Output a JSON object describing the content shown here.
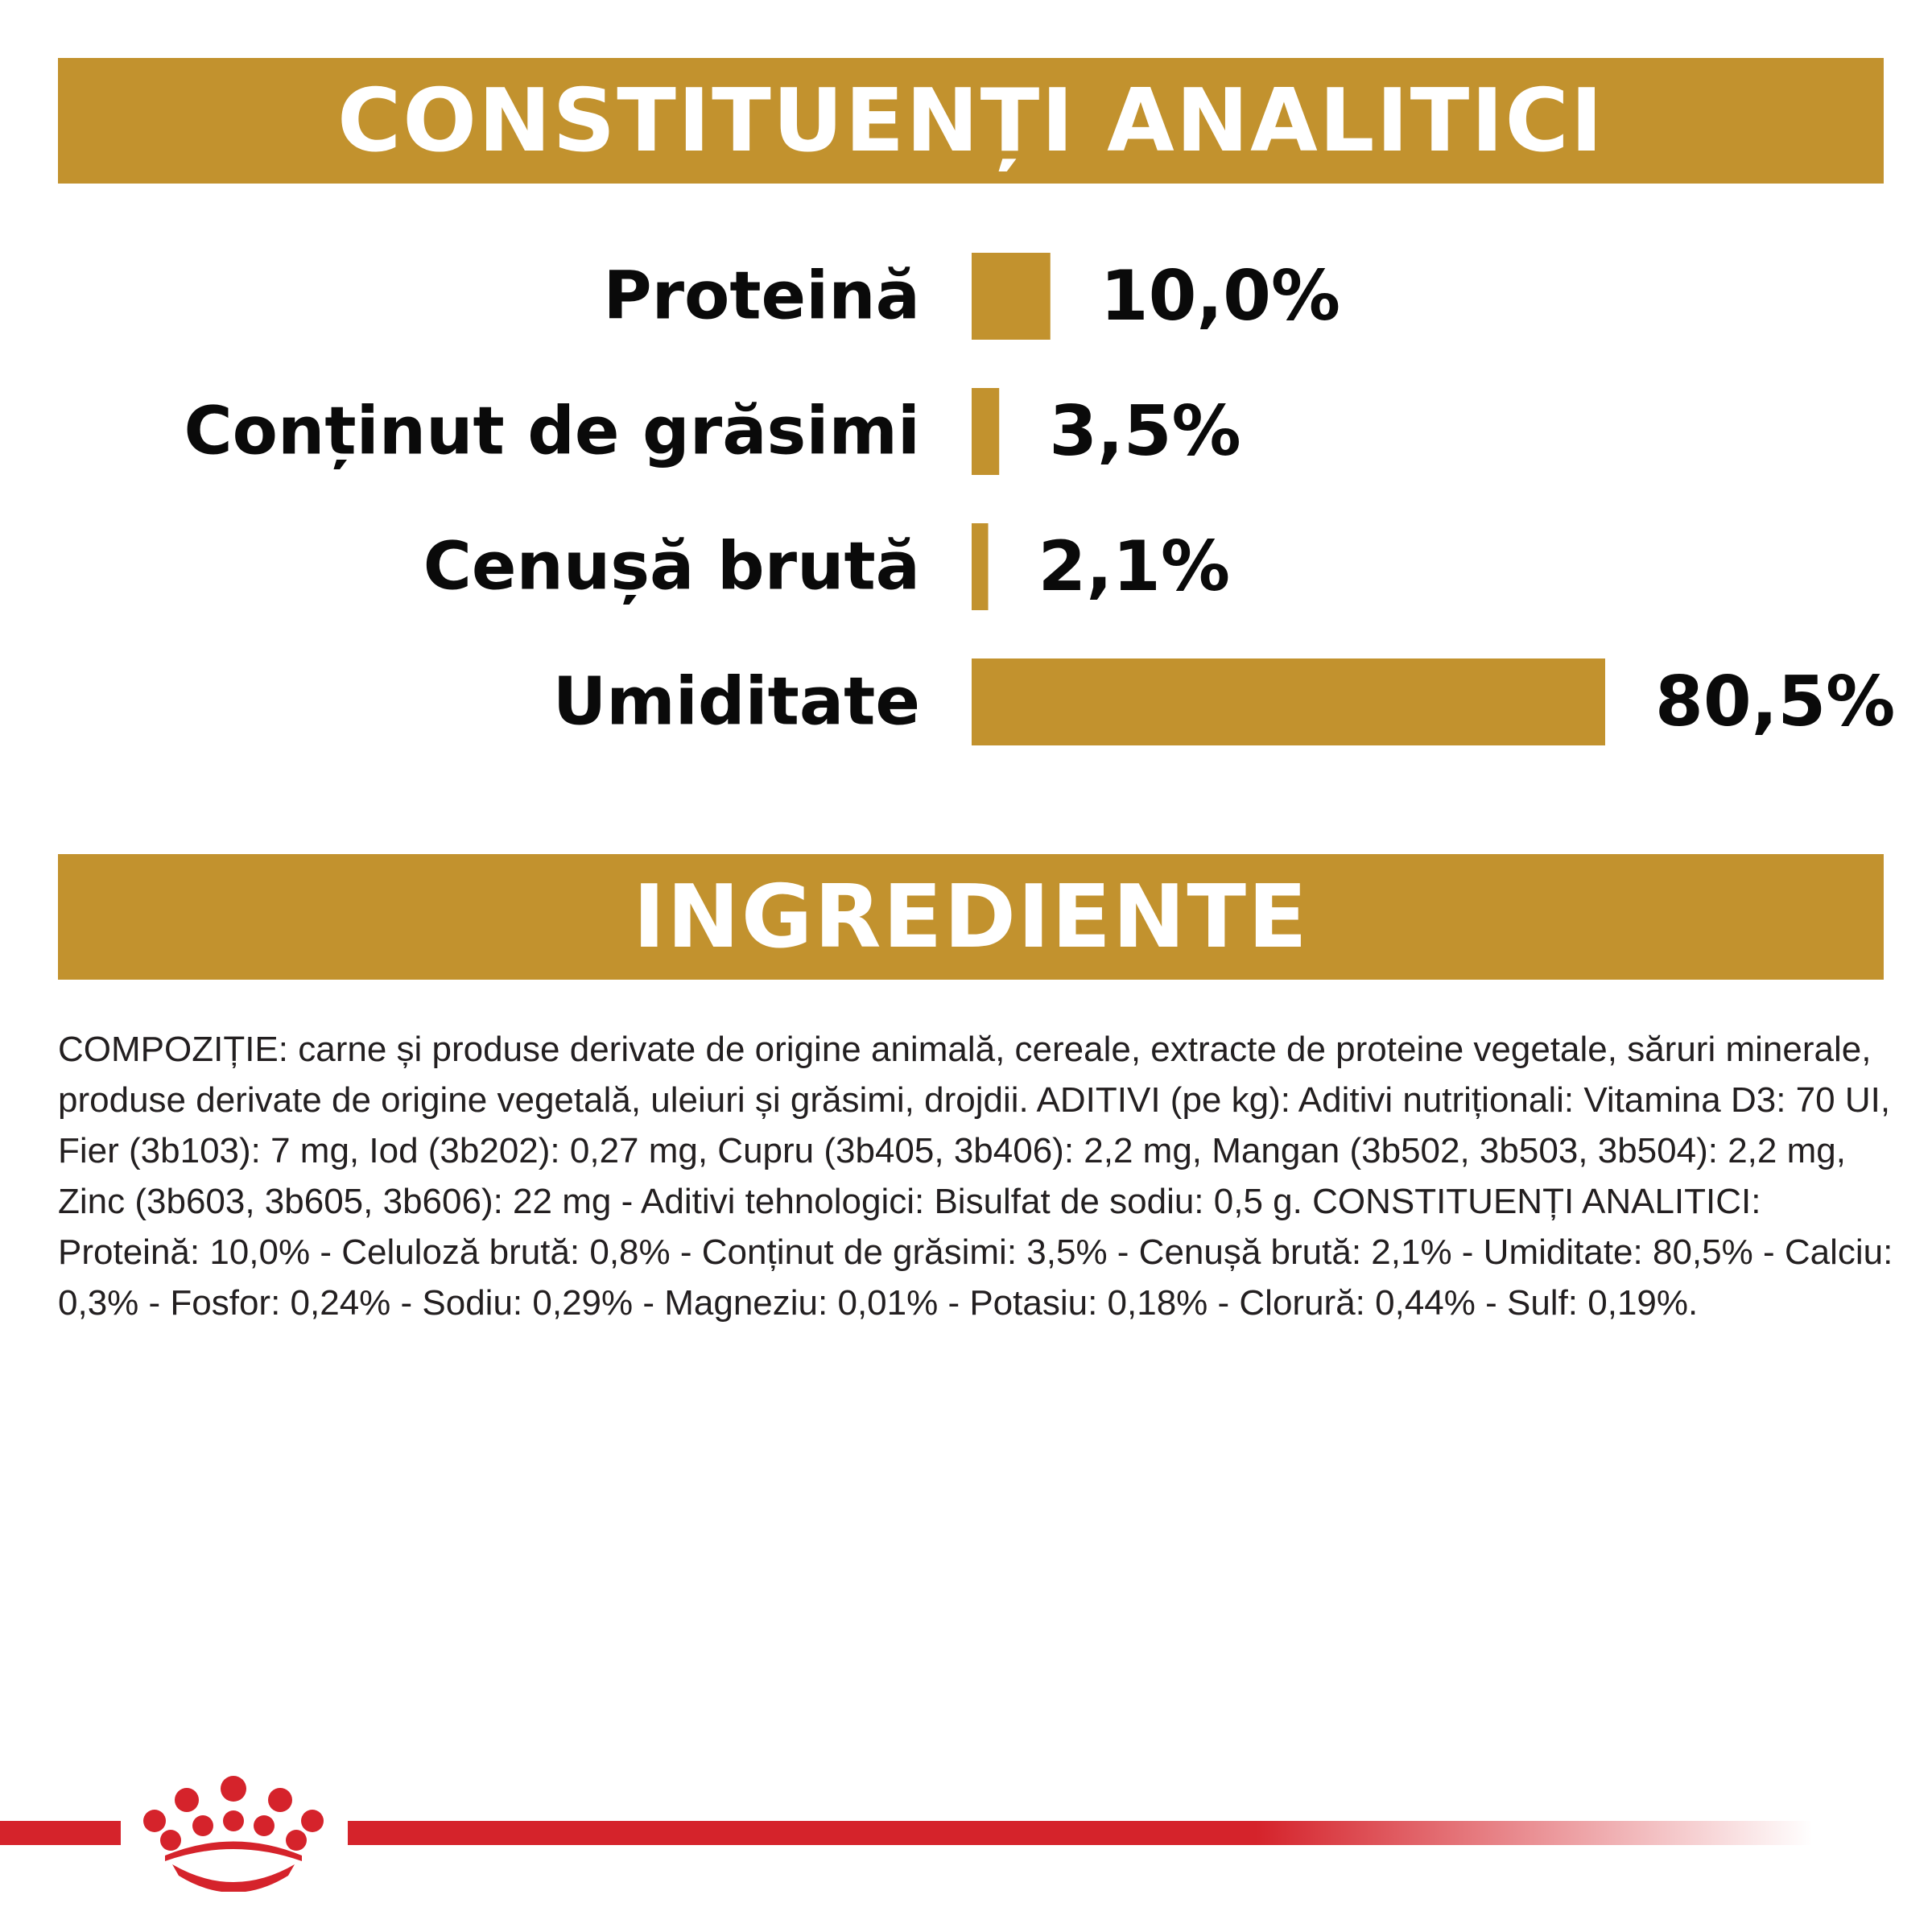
{
  "headers": {
    "analytics": "CONSTITUENȚI ANALITICI",
    "ingredients": "INGREDIENTE"
  },
  "chart_data": {
    "type": "bar",
    "orientation": "horizontal",
    "categories": [
      "Proteină",
      "Conținut de grăsimi",
      "Cenușă brută",
      "Umiditate"
    ],
    "values": [
      10.0,
      3.5,
      2.1,
      80.5
    ],
    "value_labels": [
      "10,0%",
      "3,5%",
      "2,1%",
      "80,5%"
    ],
    "unit": "%",
    "xlim": [
      0,
      80.5
    ],
    "bar_color": "#c2922e",
    "grid": false,
    "legend": "none"
  },
  "ingredients": {
    "text": "COMPOZIȚIE: carne și produse derivate de origine animală, cereale, extracte de proteine vegetale, săruri minerale, produse derivate de origine vegetală, uleiuri și grăsimi, drojdii. ADITIVI (pe kg): Aditivi nutriționali: Vitamina D3: 70 UI, Fier (3b103): 7 mg, Iod (3b202): 0,27 mg, Cupru (3b405, 3b406): 2,2 mg, Mangan (3b502, 3b503, 3b504): 2,2 mg, Zinc (3b603, 3b605, 3b606): 22 mg - Aditivi tehnologici: Bisulfat de sodiu: 0,5 g. CONSTITUENȚI ANALITICI: Proteină: 10,0% - Celuloză brută: 0,8% - Conținut de grăsimi: 3,5% - Cenușă brută: 2,1% - Umiditate: 80,5% - Calciu: 0,3% - Fosfor: 0,24% - Sodiu: 0,29% - Magneziu: 0,01% - Potasiu: 0,18% - Clorură: 0,44% - Sulf: 0,19%."
  },
  "brand": {
    "logo_icon": "royal-canin-crown-icon",
    "line_color": "#d5232b"
  }
}
